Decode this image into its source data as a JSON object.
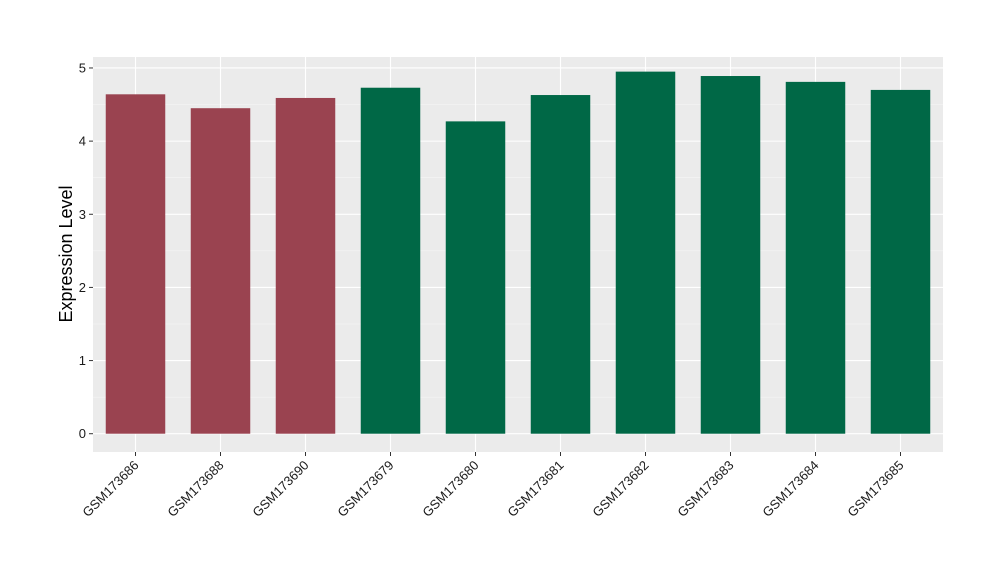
{
  "chart_data": {
    "type": "bar",
    "title": "",
    "xlabel": "",
    "ylabel": "Expression Level",
    "ylim": [
      -0.25,
      5.15
    ],
    "yticks": [
      0,
      1,
      2,
      3,
      4,
      5
    ],
    "grid": true,
    "background": "#EBEBEB",
    "categories": [
      "GSM173686",
      "GSM173688",
      "GSM173690",
      "GSM173679",
      "GSM173680",
      "GSM173681",
      "GSM173682",
      "GSM173683",
      "GSM173684",
      "GSM173685"
    ],
    "values": [
      4.64,
      4.45,
      4.59,
      4.73,
      4.27,
      4.63,
      4.95,
      4.89,
      4.81,
      4.7
    ],
    "bar_colors": [
      "#9A4350",
      "#9A4350",
      "#9A4350",
      "#006846",
      "#006846",
      "#006846",
      "#006846",
      "#006846",
      "#006846",
      "#006846"
    ]
  }
}
